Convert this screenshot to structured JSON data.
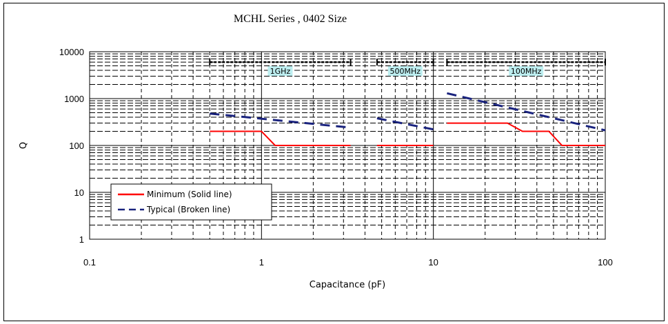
{
  "chart_data": {
    "type": "line",
    "title": "MCHL Series , 0402 Size",
    "xlabel": "Capacitance (pF)",
    "ylabel": "Q",
    "x_scale": "log",
    "y_scale": "log",
    "xlim": [
      0.1,
      100
    ],
    "ylim": [
      1,
      10000
    ],
    "x_ticks": [
      0.1,
      1,
      10,
      100
    ],
    "x_tick_labels": [
      "0.1",
      "1",
      "10",
      "100"
    ],
    "y_ticks": [
      1,
      10,
      100,
      1000,
      10000
    ],
    "y_tick_labels": [
      "1",
      "10",
      "100",
      "1000",
      "10000"
    ],
    "grid": true,
    "legend_position": "bottom-left",
    "colors": {
      "minimum": "#ff0000",
      "typical": "#1a237e",
      "band_marker": "#000000",
      "band_label_bg": "#bdeef0"
    },
    "frequency_bands": [
      {
        "label": "1GHz",
        "x_range": [
          0.5,
          3.3
        ],
        "y": 6000
      },
      {
        "label": "500MHz",
        "x_range": [
          4.7,
          10
        ],
        "y": 6000
      },
      {
        "label": "100MHz",
        "x_range": [
          12,
          100
        ],
        "y": 6000
      }
    ],
    "series": [
      {
        "name": "Minimum (Solid line)",
        "style": "solid",
        "segments": [
          {
            "x": [
              0.5,
              1.0,
              1.2,
              3.3
            ],
            "y": [
              200,
              200,
              100,
              100
            ]
          },
          {
            "x": [
              4.7,
              10
            ],
            "y": [
              100,
              100
            ]
          },
          {
            "x": [
              12,
              27,
              33,
              47,
              56,
              100
            ],
            "y": [
              300,
              300,
              200,
              200,
              100,
              100
            ]
          }
        ]
      },
      {
        "name": "Typical (Broken line)",
        "style": "dashed",
        "segments": [
          {
            "x": [
              0.5,
              3.3
            ],
            "y": [
              480,
              240
            ]
          },
          {
            "x": [
              4.7,
              10
            ],
            "y": [
              380,
              220
            ]
          },
          {
            "x": [
              12,
              100
            ],
            "y": [
              1300,
              210
            ]
          }
        ]
      }
    ]
  }
}
